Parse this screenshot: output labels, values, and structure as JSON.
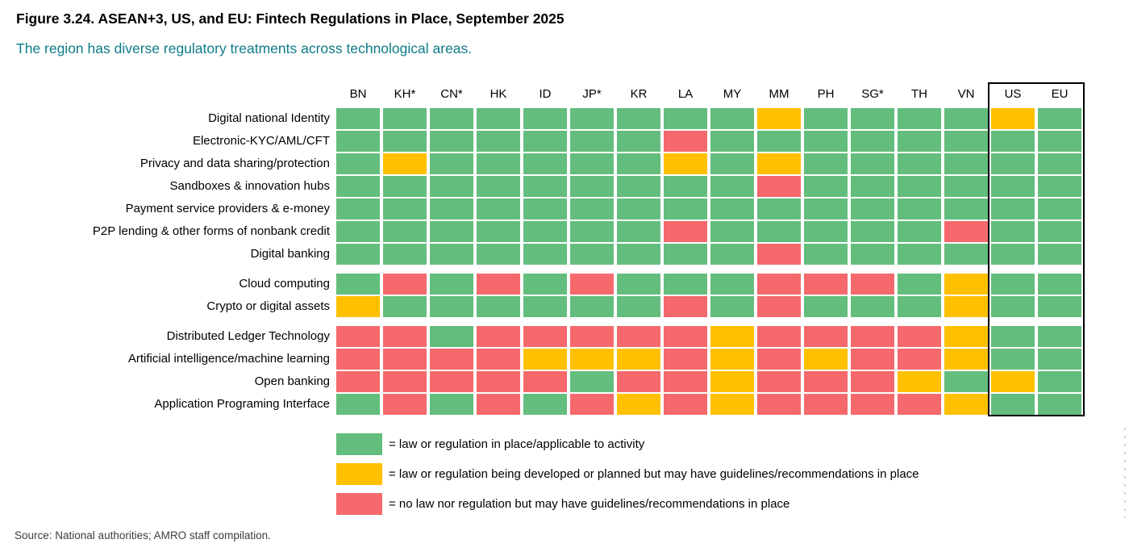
{
  "header": {
    "title": "Figure 3.24. ASEAN+3, US, and EU: Fintech Regulations in Place, September 2025",
    "subtitle": "The region has diverse regulatory treatments across technological areas."
  },
  "colors": {
    "green": "#63BD7D",
    "yellow": "#FFC000",
    "red": "#F5696C",
    "subtitle_teal": "#0E7C88",
    "highlight_border": "#000000"
  },
  "chart_data": {
    "type": "heatmap",
    "columns": [
      "BN",
      "KH*",
      "CN*",
      "HK",
      "ID",
      "JP*",
      "KR",
      "LA",
      "MY",
      "MM",
      "PH",
      "SG*",
      "TH",
      "VN",
      "US",
      "EU"
    ],
    "highlighted_columns": [
      "US",
      "EU"
    ],
    "value_key": {
      "G": "law or regulation in place/applicable to activity",
      "Y": "law or regulation being developed or planned but may have guidelines/recommendations in place",
      "R": "no law nor regulation but may have guidelines/recommendations in place"
    },
    "row_groups": [
      {
        "rows": [
          {
            "label": "Digital national Identity",
            "values": [
              "G",
              "G",
              "G",
              "G",
              "G",
              "G",
              "G",
              "G",
              "G",
              "Y",
              "G",
              "G",
              "G",
              "G",
              "Y",
              "G"
            ]
          },
          {
            "label": "Electronic-KYC/AML/CFT",
            "values": [
              "G",
              "G",
              "G",
              "G",
              "G",
              "G",
              "G",
              "R",
              "G",
              "G",
              "G",
              "G",
              "G",
              "G",
              "G",
              "G"
            ]
          },
          {
            "label": "Privacy and data sharing/protection",
            "values": [
              "G",
              "Y",
              "G",
              "G",
              "G",
              "G",
              "G",
              "Y",
              "G",
              "Y",
              "G",
              "G",
              "G",
              "G",
              "G",
              "G"
            ]
          },
          {
            "label": "Sandboxes & innovation hubs",
            "values": [
              "G",
              "G",
              "G",
              "G",
              "G",
              "G",
              "G",
              "G",
              "G",
              "R",
              "G",
              "G",
              "G",
              "G",
              "G",
              "G"
            ]
          },
          {
            "label": "Payment service providers & e-money",
            "values": [
              "G",
              "G",
              "G",
              "G",
              "G",
              "G",
              "G",
              "G",
              "G",
              "G",
              "G",
              "G",
              "G",
              "G",
              "G",
              "G"
            ]
          },
          {
            "label": "P2P lending & other forms of nonbank credit",
            "values": [
              "G",
              "G",
              "G",
              "G",
              "G",
              "G",
              "G",
              "R",
              "G",
              "G",
              "G",
              "G",
              "G",
              "R",
              "G",
              "G"
            ]
          },
          {
            "label": "Digital banking",
            "values": [
              "G",
              "G",
              "G",
              "G",
              "G",
              "G",
              "G",
              "G",
              "G",
              "R",
              "G",
              "G",
              "G",
              "G",
              "G",
              "G"
            ]
          }
        ]
      },
      {
        "rows": [
          {
            "label": "Cloud computing",
            "values": [
              "G",
              "R",
              "G",
              "R",
              "G",
              "R",
              "G",
              "G",
              "G",
              "R",
              "R",
              "R",
              "G",
              "Y",
              "G",
              "G"
            ]
          },
          {
            "label": "Crypto or digital assets",
            "values": [
              "Y",
              "G",
              "G",
              "G",
              "G",
              "G",
              "G",
              "R",
              "G",
              "R",
              "G",
              "G",
              "G",
              "Y",
              "G",
              "G"
            ]
          }
        ]
      },
      {
        "rows": [
          {
            "label": "Distributed Ledger Technology",
            "values": [
              "R",
              "R",
              "G",
              "R",
              "R",
              "R",
              "R",
              "R",
              "Y",
              "R",
              "R",
              "R",
              "R",
              "Y",
              "G",
              "G"
            ]
          },
          {
            "label": "Artificial intelligence/machine learning",
            "values": [
              "R",
              "R",
              "R",
              "R",
              "Y",
              "Y",
              "Y",
              "R",
              "Y",
              "R",
              "Y",
              "R",
              "R",
              "Y",
              "G",
              "G"
            ]
          },
          {
            "label": "Open banking",
            "values": [
              "R",
              "R",
              "R",
              "R",
              "R",
              "G",
              "R",
              "R",
              "Y",
              "R",
              "R",
              "R",
              "Y",
              "G",
              "Y",
              "G"
            ]
          },
          {
            "label": "Application Programing Interface",
            "values": [
              "G",
              "R",
              "G",
              "R",
              "G",
              "R",
              "Y",
              "R",
              "Y",
              "R",
              "R",
              "R",
              "R",
              "Y",
              "G",
              "G"
            ]
          }
        ]
      }
    ]
  },
  "legend": {
    "items": [
      {
        "key": "green",
        "label": "= law or regulation in place/applicable to activity"
      },
      {
        "key": "yellow",
        "label": "= law or regulation being developed or planned but may have guidelines/recommendations in place"
      },
      {
        "key": "red",
        "label": "= no law nor regulation but may have guidelines/recommendations in place"
      }
    ]
  },
  "footer": {
    "source": "Source: National authorities; AMRO staff compilation."
  }
}
